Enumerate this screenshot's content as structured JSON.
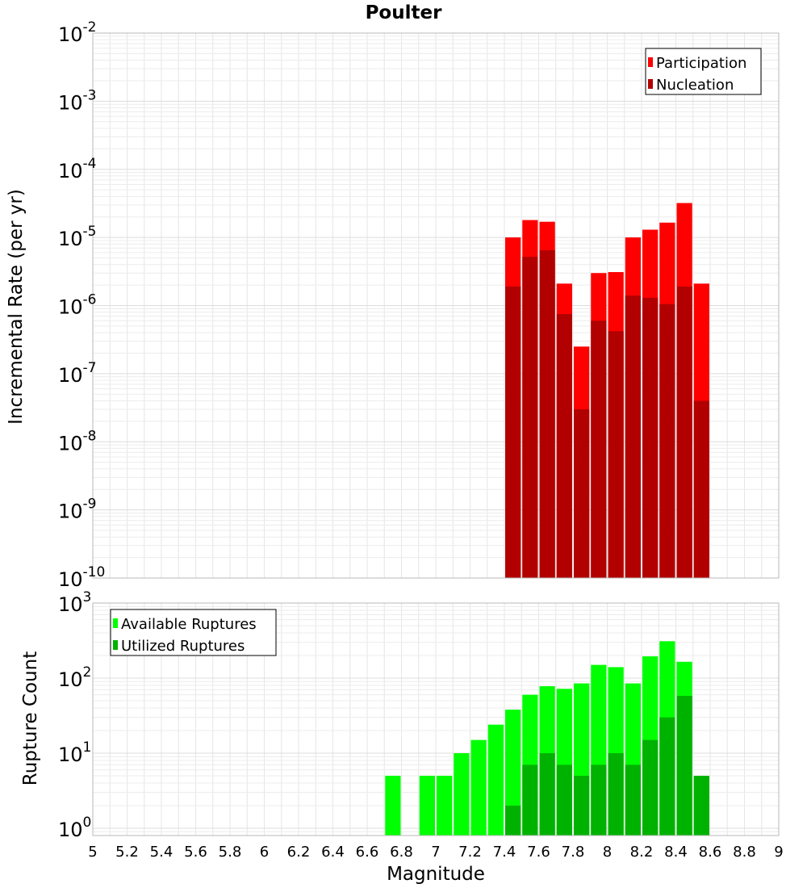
{
  "chart_data": [
    {
      "type": "bar",
      "title": "Poulter",
      "xlabel": "Magnitude",
      "ylabel": "Incremental Rate (per yr)",
      "yscale": "log",
      "xlim": [
        5,
        9
      ],
      "ylim": [
        1e-10,
        0.01
      ],
      "y_tick_bases": [
        "10",
        "10",
        "10",
        "10",
        "10",
        "10",
        "10",
        "10",
        "10"
      ],
      "y_tick_exponents": [
        "-10",
        "-9",
        "-8",
        "-7",
        "-6",
        "-5",
        "-4",
        "-3",
        "-2"
      ],
      "bin_width": 0.1,
      "legend_position": "top-right",
      "x": [
        7.45,
        7.55,
        7.65,
        7.75,
        7.85,
        7.95,
        8.05,
        8.15,
        8.25,
        8.35,
        8.45,
        8.55
      ],
      "series": [
        {
          "name": "Participation",
          "color": "#ff0000",
          "values": [
            1e-05,
            1.8e-05,
            1.7e-05,
            2.1e-06,
            2.5e-07,
            3e-06,
            3.1e-06,
            1e-05,
            1.3e-05,
            1.65e-05,
            3.2e-05,
            2.1e-06
          ]
        },
        {
          "name": "Nucleation",
          "color": "#b20000",
          "values": [
            1.9e-06,
            5.2e-06,
            6.5e-06,
            7.5e-07,
            3e-08,
            6e-07,
            4.2e-07,
            1.4e-06,
            1.3e-06,
            1.05e-06,
            1.9e-06,
            4e-08
          ]
        }
      ]
    },
    {
      "type": "bar",
      "title": "",
      "xlabel": "Magnitude",
      "ylabel": "Rupture Count",
      "yscale": "log",
      "xlim": [
        5,
        9
      ],
      "ylim": [
        0.8,
        1000
      ],
      "y_tick_bases": [
        "10",
        "10",
        "10",
        "10"
      ],
      "y_tick_exponents": [
        "0",
        "1",
        "2",
        "3"
      ],
      "x_tick_labels": [
        "5",
        "5.2",
        "5.4",
        "5.6",
        "5.8",
        "6",
        "6.2",
        "6.4",
        "6.6",
        "6.8",
        "7",
        "7.2",
        "7.4",
        "7.6",
        "7.8",
        "8",
        "8.2",
        "8.4",
        "8.6",
        "8.8",
        "9"
      ],
      "bin_width": 0.1,
      "legend_position": "top-left",
      "x": [
        6.75,
        6.95,
        7.05,
        7.15,
        7.25,
        7.35,
        7.45,
        7.55,
        7.65,
        7.75,
        7.85,
        7.95,
        8.05,
        8.15,
        8.25,
        8.35,
        8.45,
        8.55
      ],
      "series": [
        {
          "name": "Available Ruptures",
          "color": "#00ff00",
          "values": [
            5,
            5,
            5,
            10,
            15,
            24,
            38,
            60,
            78,
            72,
            85,
            150,
            140,
            85,
            195,
            310,
            165,
            5
          ]
        },
        {
          "name": "Utilized Ruptures",
          "color": "#00b200",
          "values": [
            0,
            0,
            0,
            0,
            0,
            0,
            2,
            7,
            10,
            7,
            5,
            7,
            10,
            7,
            15,
            30,
            58,
            5
          ]
        }
      ]
    }
  ]
}
